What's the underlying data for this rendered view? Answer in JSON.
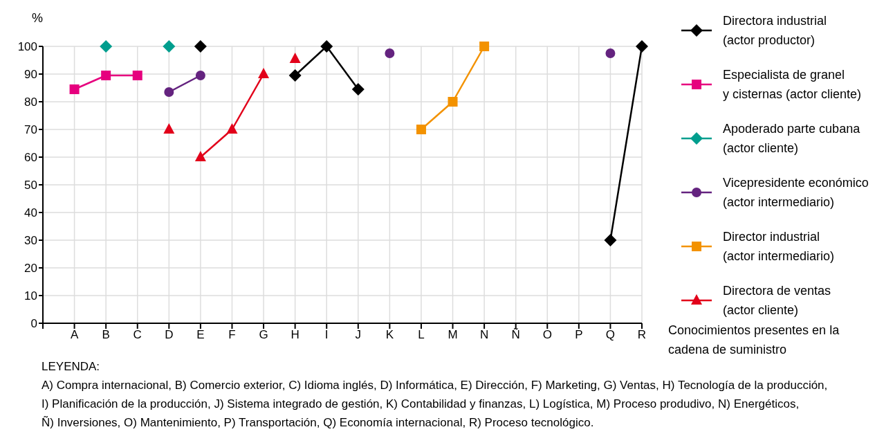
{
  "chart_data": {
    "type": "line",
    "ylabel": "%",
    "xlabel": "Conocimientos presentes en la cadena de suministro",
    "categories": [
      null,
      "A",
      "B",
      "C",
      "D",
      "E",
      "F",
      "G",
      "H",
      "I",
      "J",
      "K",
      "L",
      "M",
      "N",
      "Ñ",
      "O",
      "P",
      "Q",
      "R"
    ],
    "series": [
      {
        "name": "Directora industrial\n(actor productor)",
        "color": "#000000",
        "marker": "diamond",
        "values": [
          null,
          null,
          null,
          null,
          null,
          100,
          null,
          null,
          89.5,
          100,
          84.5,
          null,
          null,
          null,
          null,
          null,
          null,
          null,
          30,
          100
        ]
      },
      {
        "name": "Especialista de granel\ny cisternas (actor cliente)",
        "color": "#e6007e",
        "marker": "square",
        "values": [
          null,
          84.5,
          89.5,
          89.5,
          null,
          null,
          null,
          null,
          null,
          null,
          null,
          null,
          null,
          null,
          null,
          null,
          null,
          null,
          null,
          null
        ]
      },
      {
        "name": "Apoderado parte cubana\n(actor cliente)",
        "color": "#009e8e",
        "marker": "diamond",
        "type": "scatter",
        "values": [
          null,
          null,
          100,
          null,
          100,
          null,
          null,
          null,
          null,
          null,
          null,
          null,
          null,
          null,
          null,
          null,
          null,
          null,
          null,
          null
        ]
      },
      {
        "name": "Vicepresidente económico\n(actor intermediario)",
        "color": "#64237f",
        "marker": "circle",
        "values": [
          null,
          null,
          null,
          null,
          83.5,
          89.5,
          null,
          null,
          null,
          null,
          null,
          97.5,
          null,
          null,
          null,
          null,
          null,
          null,
          97.5,
          null
        ]
      },
      {
        "name": "Director industrial\n(actor intermediario)",
        "color": "#f39200",
        "marker": "square",
        "values": [
          null,
          null,
          null,
          null,
          null,
          null,
          null,
          null,
          null,
          null,
          null,
          null,
          70,
          80,
          100,
          null,
          null,
          null,
          null,
          null
        ]
      },
      {
        "name": "Directora de ventas\n(actor cliente)",
        "color": "#e2001a",
        "marker": "triangle",
        "values": [
          null,
          null,
          null,
          null,
          null,
          60,
          70,
          90,
          null,
          null,
          null,
          null,
          null,
          null,
          null,
          null,
          null,
          null,
          null,
          null
        ]
      },
      {
        "color": "#e2001a",
        "marker": "triangle",
        "type": "scatter",
        "values": [
          null,
          null,
          null,
          null,
          70,
          null,
          null,
          null,
          95.5,
          null,
          null,
          null,
          null,
          null,
          null,
          null,
          null,
          null,
          null,
          null
        ]
      }
    ],
    "ylim": [
      0,
      100
    ],
    "yticks": [
      0,
      10,
      20,
      30,
      40,
      50,
      60,
      70,
      80,
      90,
      100
    ],
    "grid": true,
    "legend": "right",
    "annotations": [
      "LEYENDA:",
      "A) Compra internacional, B) Comercio exterior, C) Idioma inglés, D) Informática, E) Dirección, F) Marketing, G) Ventas, H) Tecnología de la producción,",
      "I) Planificación de la producción, J) Sistema integrado de gestión, K) Contabilidad y finanzas, L) Logística, M) Proceso produdivo, N) Energéticos,",
      "Ñ) Inversiones, O) Mantenimiento, P) Transportación, Q) Economía internacional, R) Proceso tecnológico."
    ]
  }
}
